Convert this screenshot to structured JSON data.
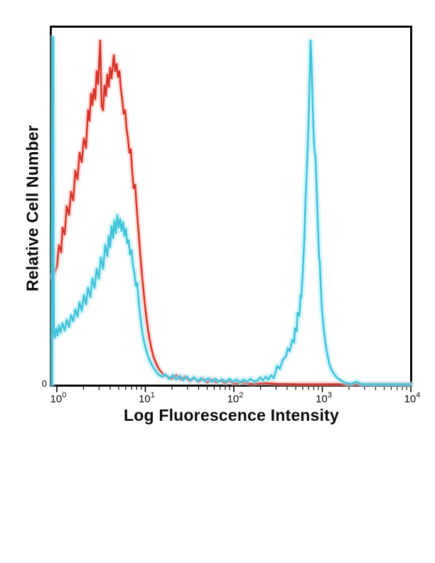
{
  "figure": {
    "kind": "flow-cytometry-overlay-histogram",
    "background_color": "#ffffff",
    "border_color": "#0a0a0a"
  },
  "labels": {
    "x_axis_title": "Log Fluorescence Intensity",
    "y_axis_title": "Relative Cell Number",
    "y_zero_label": "0"
  },
  "chart_data": {
    "type": "line",
    "title": "",
    "xlabel": "Log Fluorescence Intensity",
    "ylabel": "Relative Cell Number",
    "x_scale": "log10",
    "x_range": [
      1,
      10000
    ],
    "ylim_pct": [
      0,
      100
    ],
    "grid": false,
    "legend": null,
    "x_axis": {
      "tick_base": "10",
      "major_tick_exponents": [
        0,
        1,
        2,
        3,
        4
      ],
      "minor_ticks_per_decade": [
        2,
        3,
        4,
        5,
        6,
        7,
        8,
        9
      ]
    },
    "y_axis": {
      "labeled_values": [
        "0"
      ],
      "units": "relative cell number (percent of axis height)"
    },
    "series": [
      {
        "name": "red-curve",
        "description": "left noisy population, peak near x=3, max height 96%",
        "peak_x_approx": 3.1,
        "peak_height_pct": 96,
        "color_core": "#d63227",
        "color_glow": "#ff9e96",
        "points_log10x_ypct": [
          [
            -0.06,
            30
          ],
          [
            -0.032,
            31
          ],
          [
            0,
            32.9
          ],
          [
            0.024,
            38.9
          ],
          [
            0.048,
            36.9
          ],
          [
            0.064,
            43.8
          ],
          [
            0.088,
            41.9
          ],
          [
            0.112,
            49.8
          ],
          [
            0.137,
            47.4
          ],
          [
            0.161,
            53.8
          ],
          [
            0.185,
            51.4
          ],
          [
            0.209,
            59.7
          ],
          [
            0.233,
            57.3
          ],
          [
            0.257,
            64.7
          ],
          [
            0.281,
            62.1
          ],
          [
            0.305,
            68.7
          ],
          [
            0.329,
            66.1
          ],
          [
            0.353,
            76.6
          ],
          [
            0.369,
            73.6
          ],
          [
            0.386,
            81.2
          ],
          [
            0.402,
            78
          ],
          [
            0.418,
            82.5
          ],
          [
            0.434,
            79.6
          ],
          [
            0.45,
            87.5
          ],
          [
            0.466,
            83.9
          ],
          [
            0.49,
            96
          ],
          [
            0.506,
            77.6
          ],
          [
            0.522,
            76.6
          ],
          [
            0.538,
            83.5
          ],
          [
            0.554,
            80.6
          ],
          [
            0.57,
            86.5
          ],
          [
            0.586,
            83.1
          ],
          [
            0.602,
            88.5
          ],
          [
            0.618,
            85.5
          ],
          [
            0.643,
            91.9
          ],
          [
            0.659,
            87.5
          ],
          [
            0.675,
            89.5
          ],
          [
            0.691,
            85.9
          ],
          [
            0.707,
            87.5
          ],
          [
            0.723,
            82.5
          ],
          [
            0.739,
            79.6
          ],
          [
            0.755,
            75.6
          ],
          [
            0.771,
            76.6
          ],
          [
            0.787,
            71.6
          ],
          [
            0.803,
            68.7
          ],
          [
            0.819,
            64.7
          ],
          [
            0.835,
            65.7
          ],
          [
            0.851,
            59.7
          ],
          [
            0.867,
            54.8
          ],
          [
            0.884,
            55.8
          ],
          [
            0.9,
            49.8
          ],
          [
            0.916,
            44.8
          ],
          [
            0.932,
            39.9
          ],
          [
            0.948,
            34.9
          ],
          [
            0.964,
            30
          ],
          [
            0.98,
            26
          ],
          [
            0.996,
            22
          ],
          [
            1.02,
            17.1
          ],
          [
            1.044,
            13.1
          ],
          [
            1.068,
            10.1
          ],
          [
            1.092,
            7.7
          ],
          [
            1.124,
            5.8
          ],
          [
            1.157,
            4.2
          ],
          [
            1.197,
            3
          ],
          [
            1.245,
            2.2
          ],
          [
            1.301,
            1.6
          ],
          [
            1.35,
            2.6
          ],
          [
            1.4,
            1.4
          ],
          [
            1.45,
            2.2
          ],
          [
            1.5,
            1
          ],
          [
            1.55,
            1.8
          ],
          [
            1.6,
            0.8
          ],
          [
            1.65,
            1.6
          ],
          [
            1.7,
            0.6
          ],
          [
            1.75,
            1.4
          ],
          [
            1.8,
            0.6
          ],
          [
            1.85,
            1.2
          ],
          [
            1.9,
            0.4
          ],
          [
            1.95,
            1
          ],
          [
            2,
            0.3
          ],
          [
            2.1,
            0.6
          ],
          [
            2.2,
            0.2
          ],
          [
            2.35,
            0.4
          ],
          [
            2.5,
            0.15
          ],
          [
            2.75,
            0.1
          ],
          [
            3,
            0.1
          ],
          [
            3.5,
            0.1
          ],
          [
            4,
            0.1
          ]
        ]
      },
      {
        "name": "cyan-curve",
        "description": "left-edge spike, dim sub-population near x=5 (47%), bright population peak near x=740, max height 96%",
        "left_edge_spike_height_pct": 97,
        "subpeak_x_approx": 5,
        "subpeak_height_pct": 47,
        "peak_x_approx": 740,
        "peak_height_pct": 96,
        "color_core": "#3fc1d9",
        "color_glow": "#9ce8f6",
        "points_log10x_ypct": [
          [
            -0.053,
            0
          ],
          [
            -0.049,
            55
          ],
          [
            -0.045,
            97
          ],
          [
            -0.041,
            97
          ],
          [
            -0.037,
            35
          ],
          [
            -0.033,
            14
          ],
          [
            -0.024,
            13.1
          ],
          [
            -0.008,
            15.7
          ],
          [
            0.008,
            13.7
          ],
          [
            0.024,
            16.5
          ],
          [
            0.04,
            14.5
          ],
          [
            0.064,
            17.1
          ],
          [
            0.088,
            15.1
          ],
          [
            0.112,
            18.1
          ],
          [
            0.137,
            16.1
          ],
          [
            0.161,
            19.4
          ],
          [
            0.185,
            17.7
          ],
          [
            0.209,
            21
          ],
          [
            0.233,
            19
          ],
          [
            0.257,
            23
          ],
          [
            0.281,
            20.6
          ],
          [
            0.305,
            25
          ],
          [
            0.329,
            22.4
          ],
          [
            0.353,
            27
          ],
          [
            0.378,
            24.4
          ],
          [
            0.402,
            29.6
          ],
          [
            0.426,
            27
          ],
          [
            0.45,
            32.3
          ],
          [
            0.474,
            29.6
          ],
          [
            0.498,
            35.5
          ],
          [
            0.522,
            32.3
          ],
          [
            0.546,
            38.9
          ],
          [
            0.57,
            35.9
          ],
          [
            0.586,
            41.5
          ],
          [
            0.602,
            38.3
          ],
          [
            0.618,
            44.2
          ],
          [
            0.635,
            40.9
          ],
          [
            0.651,
            45.8
          ],
          [
            0.667,
            42.3
          ],
          [
            0.683,
            47.2
          ],
          [
            0.699,
            43.8
          ],
          [
            0.715,
            46.2
          ],
          [
            0.731,
            42.9
          ],
          [
            0.747,
            45.4
          ],
          [
            0.763,
            41.5
          ],
          [
            0.779,
            43.5
          ],
          [
            0.795,
            39.5
          ],
          [
            0.811,
            40.3
          ],
          [
            0.827,
            36.3
          ],
          [
            0.843,
            37.5
          ],
          [
            0.859,
            33.5
          ],
          [
            0.876,
            31
          ],
          [
            0.892,
            27.6
          ],
          [
            0.908,
            28.4
          ],
          [
            0.924,
            23.6
          ],
          [
            0.94,
            19.6
          ],
          [
            0.956,
            16.5
          ],
          [
            0.972,
            13.7
          ],
          [
            0.988,
            11.7
          ],
          [
            1.012,
            9.3
          ],
          [
            1.036,
            7.5
          ],
          [
            1.06,
            6.2
          ],
          [
            1.084,
            5
          ],
          [
            1.116,
            3.8
          ],
          [
            1.149,
            2.8
          ],
          [
            1.189,
            2.2
          ],
          [
            1.23,
            2.8
          ],
          [
            1.27,
            1.6
          ],
          [
            1.31,
            2.6
          ],
          [
            1.35,
            1.4
          ],
          [
            1.39,
            2.4
          ],
          [
            1.43,
            1.2
          ],
          [
            1.47,
            2.2
          ],
          [
            1.51,
            1.2
          ],
          [
            1.55,
            2
          ],
          [
            1.59,
            1
          ],
          [
            1.63,
            1.8
          ],
          [
            1.67,
            1
          ],
          [
            1.71,
            1.8
          ],
          [
            1.75,
            0.8
          ],
          [
            1.79,
            1.6
          ],
          [
            1.83,
            0.8
          ],
          [
            1.87,
            1.4
          ],
          [
            1.91,
            0.8
          ],
          [
            1.95,
            1.6
          ],
          [
            1.99,
            0.8
          ],
          [
            2.03,
            1.4
          ],
          [
            2.07,
            0.6
          ],
          [
            2.11,
            1.4
          ],
          [
            2.15,
            0.8
          ],
          [
            2.19,
            1.6
          ],
          [
            2.23,
            0.8
          ],
          [
            2.27,
            1.2
          ],
          [
            2.3,
            2
          ],
          [
            2.33,
            1.2
          ],
          [
            2.36,
            2.2
          ],
          [
            2.39,
            1.4
          ],
          [
            2.42,
            2.6
          ],
          [
            2.45,
            1.8
          ],
          [
            2.47,
            3.4
          ],
          [
            2.49,
            5.2
          ],
          [
            2.52,
            4.4
          ],
          [
            2.55,
            6.7
          ],
          [
            2.59,
            8.1
          ],
          [
            2.61,
            10.1
          ],
          [
            2.63,
            9.3
          ],
          [
            2.66,
            12.5
          ],
          [
            2.68,
            11.7
          ],
          [
            2.69,
            15.7
          ],
          [
            2.71,
            14.9
          ],
          [
            2.72,
            20
          ],
          [
            2.74,
            19.2
          ],
          [
            2.755,
            25
          ],
          [
            2.763,
            24.4
          ],
          [
            2.78,
            31.9
          ],
          [
            2.787,
            35.9
          ],
          [
            2.795,
            39.9
          ],
          [
            2.803,
            45.8
          ],
          [
            2.811,
            51.8
          ],
          [
            2.819,
            56.7
          ],
          [
            2.827,
            61.7
          ],
          [
            2.835,
            66.7
          ],
          [
            2.843,
            72.6
          ],
          [
            2.851,
            79.6
          ],
          [
            2.859,
            86.5
          ],
          [
            2.867,
            96
          ],
          [
            2.875,
            91.9
          ],
          [
            2.883,
            85.1
          ],
          [
            2.891,
            77.6
          ],
          [
            2.899,
            71.6
          ],
          [
            2.907,
            66.7
          ],
          [
            2.915,
            64.7
          ],
          [
            2.923,
            63.7
          ],
          [
            2.931,
            58.1
          ],
          [
            2.939,
            52.2
          ],
          [
            2.947,
            46.2
          ],
          [
            2.956,
            40.3
          ],
          [
            2.964,
            35.5
          ],
          [
            2.972,
            34.3
          ],
          [
            2.98,
            28.8
          ],
          [
            2.988,
            24.8
          ],
          [
            2.996,
            20.8
          ],
          [
            3.012,
            16.5
          ],
          [
            3.028,
            12.9
          ],
          [
            3.044,
            10.1
          ],
          [
            3.06,
            7.9
          ],
          [
            3.076,
            6
          ],
          [
            3.1,
            4.4
          ],
          [
            3.124,
            3.2
          ],
          [
            3.149,
            2.4
          ],
          [
            3.181,
            1.6
          ],
          [
            3.221,
            1
          ],
          [
            3.269,
            0.4
          ],
          [
            3.325,
            0.2
          ],
          [
            3.39,
            0.8
          ],
          [
            3.438,
            0.1
          ],
          [
            3.614,
            0.1
          ],
          [
            4,
            0.1
          ]
        ]
      }
    ]
  }
}
